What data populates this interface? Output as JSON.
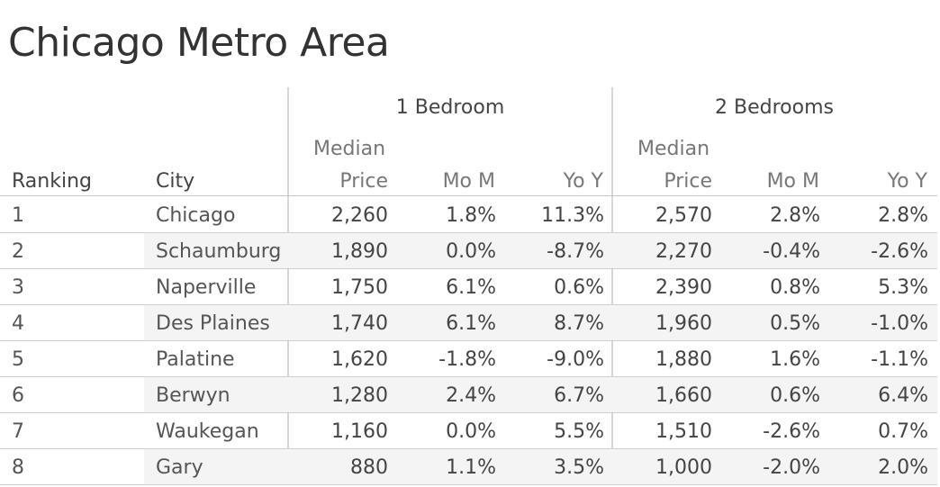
{
  "title": "Chicago Metro Area",
  "chart_data": {
    "type": "table",
    "groups": [
      "1 Bedroom",
      "2 Bedrooms"
    ],
    "columns": {
      "ranking": "Ranking",
      "city": "City",
      "median_line1": "Median",
      "median_line2": "Price",
      "mom": "Mo M",
      "yoy": "Yo Y"
    },
    "rows": [
      {
        "rank": "1",
        "city": "Chicago",
        "b1_price": "2,260",
        "b1_mom": "1.8%",
        "b1_yoy": "11.3%",
        "b2_price": "2,570",
        "b2_mom": "2.8%",
        "b2_yoy": "2.8%"
      },
      {
        "rank": "2",
        "city": "Schaumburg",
        "b1_price": "1,890",
        "b1_mom": "0.0%",
        "b1_yoy": "-8.7%",
        "b2_price": "2,270",
        "b2_mom": "-0.4%",
        "b2_yoy": "-2.6%"
      },
      {
        "rank": "3",
        "city": "Naperville",
        "b1_price": "1,750",
        "b1_mom": "6.1%",
        "b1_yoy": "0.6%",
        "b2_price": "2,390",
        "b2_mom": "0.8%",
        "b2_yoy": "5.3%"
      },
      {
        "rank": "4",
        "city": "Des Plaines",
        "b1_price": "1,740",
        "b1_mom": "6.1%",
        "b1_yoy": "8.7%",
        "b2_price": "1,960",
        "b2_mom": "0.5%",
        "b2_yoy": "-1.0%"
      },
      {
        "rank": "5",
        "city": "Palatine",
        "b1_price": "1,620",
        "b1_mom": "-1.8%",
        "b1_yoy": "-9.0%",
        "b2_price": "1,880",
        "b2_mom": "1.6%",
        "b2_yoy": "-1.1%"
      },
      {
        "rank": "6",
        "city": "Berwyn",
        "b1_price": "1,280",
        "b1_mom": "2.4%",
        "b1_yoy": "6.7%",
        "b2_price": "1,660",
        "b2_mom": "0.6%",
        "b2_yoy": "6.4%"
      },
      {
        "rank": "7",
        "city": "Waukegan",
        "b1_price": "1,160",
        "b1_mom": "0.0%",
        "b1_yoy": "5.5%",
        "b2_price": "1,510",
        "b2_mom": "-2.6%",
        "b2_yoy": "0.7%"
      },
      {
        "rank": "8",
        "city": "Gary",
        "b1_price": "880",
        "b1_mom": "1.1%",
        "b1_yoy": "3.5%",
        "b2_price": "1,000",
        "b2_mom": "-2.0%",
        "b2_yoy": "2.0%"
      }
    ]
  }
}
